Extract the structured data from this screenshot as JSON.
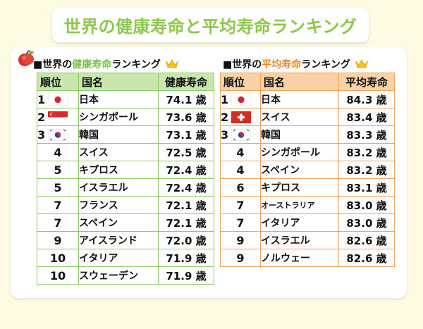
{
  "title": "世界の健康寿命と平均寿命ランキング",
  "left": {
    "heading_prefix": "■世界の",
    "heading_highlight": "健康寿命",
    "heading_suffix": "ランキング",
    "columns": [
      "順位",
      "国名",
      "健康寿命"
    ],
    "rows": [
      {
        "rank": "1",
        "flag": "japan-flag-icon",
        "country": "日本",
        "value": "74.1 歳"
      },
      {
        "rank": "2",
        "flag": "singapore-flag-icon",
        "country": "シンガポール",
        "value": "73.6 歳"
      },
      {
        "rank": "3",
        "flag": "korea-flag-icon",
        "country": "韓国",
        "value": "73.1 歳"
      },
      {
        "rank": "4",
        "flag": "",
        "country": "スイス",
        "value": "72.5 歳"
      },
      {
        "rank": "5",
        "flag": "",
        "country": "キプロス",
        "value": "72.4 歳"
      },
      {
        "rank": "5",
        "flag": "",
        "country": "イスラエル",
        "value": "72.4 歳"
      },
      {
        "rank": "7",
        "flag": "",
        "country": "フランス",
        "value": "72.1 歳"
      },
      {
        "rank": "7",
        "flag": "",
        "country": "スペイン",
        "value": "72.1 歳"
      },
      {
        "rank": "9",
        "flag": "",
        "country": "アイスランド",
        "value": "72.0 歳"
      },
      {
        "rank": "10",
        "flag": "",
        "country": "イタリア",
        "value": "71.9 歳"
      },
      {
        "rank": "10",
        "flag": "",
        "country": "スウェーデン",
        "value": "71.9 歳"
      }
    ]
  },
  "right": {
    "heading_prefix": "■世界の",
    "heading_highlight": "平均寿命",
    "heading_suffix": "ランキング",
    "columns": [
      "順位",
      "国名",
      "平均寿命"
    ],
    "rows": [
      {
        "rank": "1",
        "flag": "japan-flag-icon",
        "country": "日本",
        "value": "84.3 歳"
      },
      {
        "rank": "2",
        "flag": "switzerland-flag-icon",
        "country": "スイス",
        "value": "83.4 歳"
      },
      {
        "rank": "3",
        "flag": "korea-flag-icon",
        "country": "韓国",
        "value": "83.3 歳"
      },
      {
        "rank": "4",
        "flag": "",
        "country": "シンガポール",
        "value": "83.2 歳"
      },
      {
        "rank": "4",
        "flag": "",
        "country": "スペイン",
        "value": "83.2 歳"
      },
      {
        "rank": "6",
        "flag": "",
        "country": "キプロス",
        "value": "83.1 歳"
      },
      {
        "rank": "7",
        "flag": "",
        "country": "オーストラリア",
        "value": "83.0 歳"
      },
      {
        "rank": "7",
        "flag": "",
        "country": "イタリア",
        "value": "83.0 歳"
      },
      {
        "rank": "9",
        "flag": "",
        "country": "イスラエル",
        "value": "82.6 歳"
      },
      {
        "rank": "9",
        "flag": "",
        "country": "ノルウェー",
        "value": "82.6 歳"
      }
    ]
  },
  "colors": {
    "title_green": "#8cc84b",
    "green_header": "#c9e6ad",
    "orange_header": "#fbd1a8",
    "green_highlight": "#7dc243",
    "orange_highlight": "#f08a2a"
  }
}
